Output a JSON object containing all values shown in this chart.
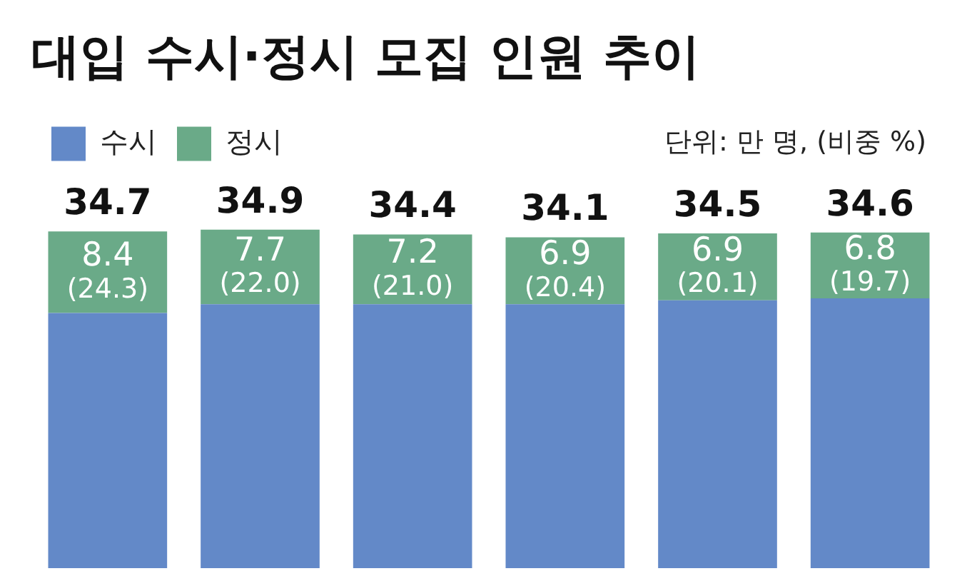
{
  "chart_data": {
    "type": "bar",
    "title": "대입 수시·정시 모집 인원 추이",
    "annotations": [
      "단위: 만 명, (비중 %)"
    ],
    "categories": [
      null,
      null,
      null,
      null,
      null,
      null
    ],
    "stacked": true,
    "legend": "top left",
    "tick_labels": false,
    "series": [
      {
        "name": "수시",
        "color": "#6389c8",
        "values": [
          26.3,
          27.2,
          27.2,
          27.2,
          27.6,
          27.8
        ]
      },
      {
        "name": "정시",
        "color": "#6aaa88",
        "values": [
          8.4,
          7.7,
          7.2,
          6.9,
          6.9,
          6.8
        ],
        "value_labels": [
          "8.4\n(24.3)",
          "7.7\n(22.0)",
          "7.2\n(21.0)",
          "6.9\n(20.4)",
          "6.9\n(20.1)",
          "6.8\n(19.7)"
        ]
      }
    ],
    "totals": [
      "34.7",
      "34.9",
      "34.4",
      "34.1",
      "34.5",
      "34.6"
    ]
  }
}
